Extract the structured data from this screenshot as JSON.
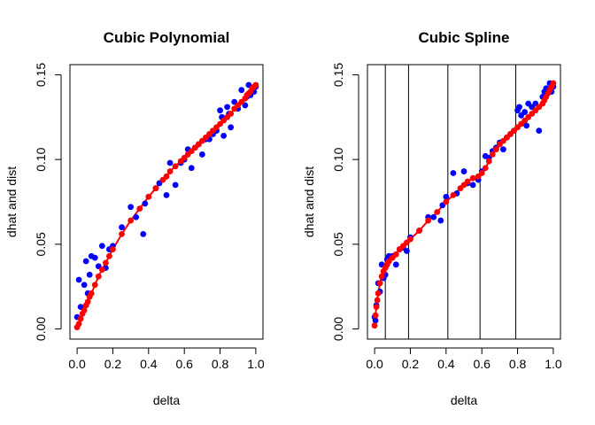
{
  "colors": {
    "observed": "#0000ff",
    "fitted": "#ff0000",
    "axis": "#000000",
    "knot_line": "#000000"
  },
  "chart_data": [
    {
      "type": "scatter",
      "title": "Cubic Polynomial",
      "xlabel": "delta",
      "ylabel": "dhat and dist",
      "xlim": [
        0,
        1
      ],
      "ylim": [
        0,
        0.15
      ],
      "x_ticks": [
        0,
        0.2,
        0.4,
        0.6,
        0.8,
        1
      ],
      "x_tick_labels": [
        "0.0",
        "0.2",
        "0.4",
        "0.6",
        "0.8",
        "1.0"
      ],
      "y_ticks": [
        0,
        0.05,
        0.1,
        0.15
      ],
      "y_tick_labels": [
        "0.00",
        "0.05",
        "0.10",
        "0.15"
      ],
      "grid": false,
      "knots": [],
      "series": [
        {
          "color": "#0000ff",
          "x": [
            0.0,
            0.01,
            0.02,
            0.04,
            0.05,
            0.06,
            0.07,
            0.08,
            0.1,
            0.12,
            0.14,
            0.16,
            0.18,
            0.2,
            0.25,
            0.3,
            0.33,
            0.37,
            0.38,
            0.4,
            0.44,
            0.46,
            0.5,
            0.52,
            0.55,
            0.58,
            0.6,
            0.62,
            0.64,
            0.66,
            0.68,
            0.7,
            0.72,
            0.74,
            0.76,
            0.78,
            0.8,
            0.81,
            0.82,
            0.84,
            0.85,
            0.86,
            0.88,
            0.9,
            0.92,
            0.94,
            0.95,
            0.96,
            0.97,
            0.98,
            0.99,
            1.0
          ],
          "y": [
            0.007,
            0.029,
            0.013,
            0.026,
            0.04,
            0.021,
            0.032,
            0.043,
            0.042,
            0.037,
            0.049,
            0.036,
            0.047,
            0.049,
            0.06,
            0.072,
            0.066,
            0.056,
            0.074,
            0.078,
            0.083,
            0.086,
            0.079,
            0.098,
            0.085,
            0.098,
            0.1,
            0.106,
            0.095,
            0.107,
            0.109,
            0.103,
            0.112,
            0.112,
            0.115,
            0.117,
            0.129,
            0.125,
            0.114,
            0.131,
            0.127,
            0.119,
            0.134,
            0.13,
            0.141,
            0.132,
            0.137,
            0.144,
            0.138,
            0.142,
            0.14,
            0.143
          ]
        },
        {
          "color": "#ff0000",
          "x": [
            0.0,
            0.01,
            0.02,
            0.03,
            0.04,
            0.05,
            0.06,
            0.07,
            0.08,
            0.1,
            0.12,
            0.14,
            0.16,
            0.18,
            0.2,
            0.25,
            0.3,
            0.35,
            0.4,
            0.44,
            0.48,
            0.5,
            0.52,
            0.55,
            0.58,
            0.6,
            0.62,
            0.64,
            0.66,
            0.68,
            0.7,
            0.72,
            0.74,
            0.76,
            0.78,
            0.8,
            0.82,
            0.84,
            0.86,
            0.88,
            0.9,
            0.92,
            0.94,
            0.95,
            0.96,
            0.97,
            0.98,
            0.99,
            1.0
          ],
          "y": [
            0.001,
            0.003,
            0.006,
            0.009,
            0.011,
            0.014,
            0.016,
            0.019,
            0.021,
            0.026,
            0.031,
            0.035,
            0.039,
            0.043,
            0.047,
            0.056,
            0.064,
            0.071,
            0.078,
            0.083,
            0.088,
            0.09,
            0.093,
            0.096,
            0.099,
            0.101,
            0.103,
            0.105,
            0.107,
            0.109,
            0.111,
            0.113,
            0.115,
            0.117,
            0.119,
            0.121,
            0.123,
            0.125,
            0.127,
            0.13,
            0.132,
            0.134,
            0.136,
            0.138,
            0.139,
            0.14,
            0.142,
            0.143,
            0.144
          ]
        }
      ]
    },
    {
      "type": "scatter",
      "title": "Cubic Spline",
      "xlabel": "delta",
      "ylabel": "dhat and dist",
      "xlim": [
        0,
        1
      ],
      "ylim": [
        0,
        0.15
      ],
      "x_ticks": [
        0,
        0.2,
        0.4,
        0.6,
        0.8,
        1
      ],
      "x_tick_labels": [
        "0.0",
        "0.2",
        "0.4",
        "0.6",
        "0.8",
        "1.0"
      ],
      "y_ticks": [
        0,
        0.05,
        0.1,
        0.15
      ],
      "y_tick_labels": [
        "0.00",
        "0.05",
        "0.10",
        "0.15"
      ],
      "grid": false,
      "knots": [
        0.06,
        0.19,
        0.41,
        0.59,
        0.79
      ],
      "series": [
        {
          "color": "#0000ff",
          "x": [
            0.0,
            0.005,
            0.01,
            0.02,
            0.03,
            0.04,
            0.05,
            0.06,
            0.07,
            0.08,
            0.1,
            0.12,
            0.14,
            0.16,
            0.18,
            0.2,
            0.25,
            0.3,
            0.33,
            0.37,
            0.38,
            0.4,
            0.44,
            0.46,
            0.5,
            0.52,
            0.55,
            0.58,
            0.6,
            0.62,
            0.64,
            0.66,
            0.68,
            0.7,
            0.72,
            0.74,
            0.76,
            0.78,
            0.8,
            0.81,
            0.82,
            0.84,
            0.85,
            0.86,
            0.88,
            0.9,
            0.92,
            0.94,
            0.95,
            0.96,
            0.97,
            0.98,
            0.99,
            1.0
          ],
          "y": [
            0.007,
            0.005,
            0.014,
            0.027,
            0.022,
            0.038,
            0.03,
            0.032,
            0.041,
            0.043,
            0.043,
            0.038,
            0.047,
            0.048,
            0.046,
            0.054,
            0.058,
            0.066,
            0.066,
            0.064,
            0.073,
            0.078,
            0.092,
            0.08,
            0.093,
            0.086,
            0.085,
            0.088,
            0.093,
            0.102,
            0.101,
            0.105,
            0.107,
            0.11,
            0.106,
            0.113,
            0.115,
            0.117,
            0.129,
            0.131,
            0.126,
            0.128,
            0.12,
            0.133,
            0.131,
            0.133,
            0.117,
            0.137,
            0.14,
            0.142,
            0.14,
            0.145,
            0.14,
            0.143
          ]
        },
        {
          "color": "#ff0000",
          "x": [
            0.0,
            0.005,
            0.01,
            0.015,
            0.02,
            0.03,
            0.04,
            0.05,
            0.06,
            0.07,
            0.08,
            0.1,
            0.12,
            0.14,
            0.16,
            0.18,
            0.2,
            0.25,
            0.3,
            0.35,
            0.4,
            0.44,
            0.48,
            0.5,
            0.52,
            0.55,
            0.58,
            0.6,
            0.62,
            0.64,
            0.66,
            0.68,
            0.7,
            0.72,
            0.74,
            0.76,
            0.78,
            0.8,
            0.82,
            0.84,
            0.86,
            0.88,
            0.9,
            0.92,
            0.94,
            0.95,
            0.96,
            0.97,
            0.98,
            0.99,
            1.0
          ],
          "y": [
            0.002,
            0.008,
            0.013,
            0.017,
            0.021,
            0.027,
            0.031,
            0.034,
            0.036,
            0.038,
            0.04,
            0.042,
            0.044,
            0.047,
            0.049,
            0.051,
            0.053,
            0.058,
            0.064,
            0.069,
            0.075,
            0.079,
            0.083,
            0.085,
            0.087,
            0.089,
            0.09,
            0.092,
            0.095,
            0.099,
            0.103,
            0.106,
            0.109,
            0.111,
            0.113,
            0.115,
            0.117,
            0.119,
            0.121,
            0.123,
            0.125,
            0.127,
            0.129,
            0.131,
            0.133,
            0.135,
            0.137,
            0.139,
            0.141,
            0.143,
            0.145
          ]
        }
      ]
    }
  ]
}
